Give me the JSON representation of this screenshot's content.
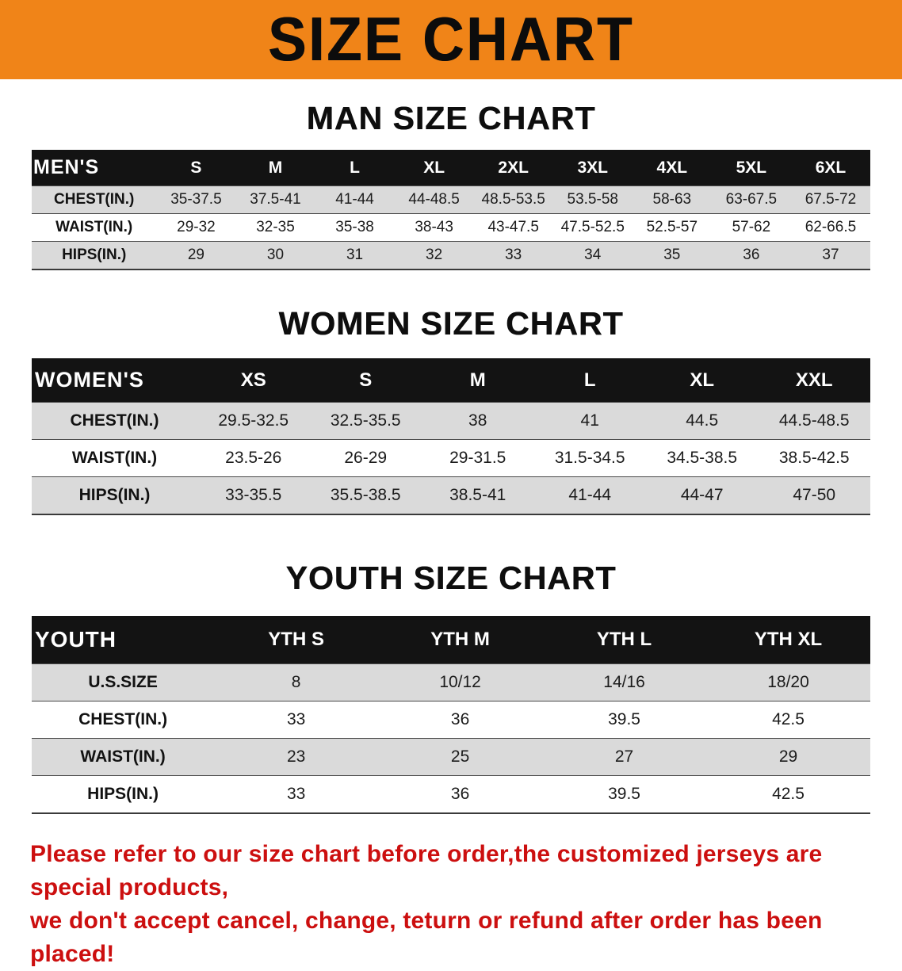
{
  "banner": {
    "title": "SIZE CHART"
  },
  "sections": {
    "men": {
      "heading": "MAN SIZE CHART"
    },
    "women": {
      "heading": "WOMEN SIZE CHART"
    },
    "youth": {
      "heading": "YOUTH SIZE CHART"
    }
  },
  "tables": {
    "men": {
      "header": [
        "MEN'S",
        "S",
        "M",
        "L",
        "XL",
        "2XL",
        "3XL",
        "4XL",
        "5XL",
        "6XL"
      ],
      "rows": [
        {
          "label": "CHEST(IN.)",
          "values": [
            "35-37.5",
            "37.5-41",
            "41-44",
            "44-48.5",
            "48.5-53.5",
            "53.5-58",
            "58-63",
            "63-67.5",
            "67.5-72"
          ]
        },
        {
          "label": "WAIST(IN.)",
          "values": [
            "29-32",
            "32-35",
            "35-38",
            "38-43",
            "43-47.5",
            "47.5-52.5",
            "52.5-57",
            "57-62",
            "62-66.5"
          ]
        },
        {
          "label": "HIPS(IN.)",
          "values": [
            "29",
            "30",
            "31",
            "32",
            "33",
            "34",
            "35",
            "36",
            "37"
          ]
        }
      ]
    },
    "women": {
      "header": [
        "WOMEN'S",
        "XS",
        "S",
        "M",
        "L",
        "XL",
        "XXL"
      ],
      "rows": [
        {
          "label": "CHEST(IN.)",
          "values": [
            "29.5-32.5",
            "32.5-35.5",
            "38",
            "41",
            "44.5",
            "44.5-48.5"
          ]
        },
        {
          "label": "WAIST(IN.)",
          "values": [
            "23.5-26",
            "26-29",
            "29-31.5",
            "31.5-34.5",
            "34.5-38.5",
            "38.5-42.5"
          ]
        },
        {
          "label": "HIPS(IN.)",
          "values": [
            "33-35.5",
            "35.5-38.5",
            "38.5-41",
            "41-44",
            "44-47",
            "47-50"
          ]
        }
      ]
    },
    "youth": {
      "header": [
        "YOUTH",
        "YTH S",
        "YTH M",
        "YTH L",
        "YTH XL"
      ],
      "rows": [
        {
          "label": "U.S.SIZE",
          "values": [
            "8",
            "10/12",
            "14/16",
            "18/20"
          ]
        },
        {
          "label": "CHEST(IN.)",
          "values": [
            "33",
            "36",
            "39.5",
            "42.5"
          ]
        },
        {
          "label": "WAIST(IN.)",
          "values": [
            "23",
            "25",
            "27",
            "29"
          ]
        },
        {
          "label": "HIPS(IN.)",
          "values": [
            "33",
            "36",
            "39.5",
            "42.5"
          ]
        }
      ]
    }
  },
  "disclaimer": {
    "line1": "Please refer to our size chart before order,the customized jerseys are special products,",
    "line2": "we don't accept cancel, change, teturn or refund after order has been placed!"
  },
  "colors": {
    "banner_bg": "#f08418",
    "table_header_bg": "#131313",
    "row_alt_bg": "#dadada",
    "disclaimer_red": "#cc0f0f"
  }
}
